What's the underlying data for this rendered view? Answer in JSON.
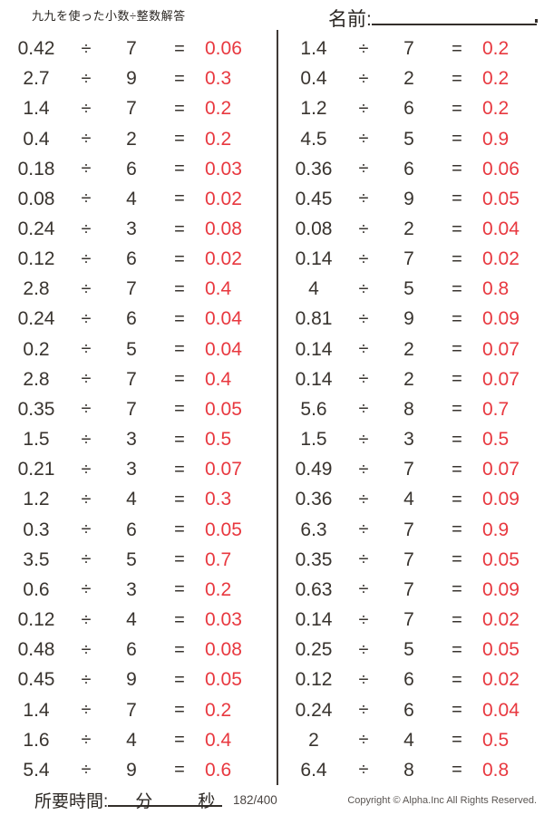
{
  "page": {
    "title": "九九を使った小数÷整数解答",
    "name_label": "名前:"
  },
  "symbols": {
    "divide": "÷",
    "equals": "="
  },
  "colors": {
    "answer_red": "#e8383f",
    "text_dark": "#39342f"
  },
  "problems": {
    "left": [
      {
        "dividend": "0.42",
        "divisor": "7",
        "answer": "0.06"
      },
      {
        "dividend": "2.7",
        "divisor": "9",
        "answer": "0.3"
      },
      {
        "dividend": "1.4",
        "divisor": "7",
        "answer": "0.2"
      },
      {
        "dividend": "0.4",
        "divisor": "2",
        "answer": "0.2"
      },
      {
        "dividend": "0.18",
        "divisor": "6",
        "answer": "0.03"
      },
      {
        "dividend": "0.08",
        "divisor": "4",
        "answer": "0.02"
      },
      {
        "dividend": "0.24",
        "divisor": "3",
        "answer": "0.08"
      },
      {
        "dividend": "0.12",
        "divisor": "6",
        "answer": "0.02"
      },
      {
        "dividend": "2.8",
        "divisor": "7",
        "answer": "0.4"
      },
      {
        "dividend": "0.24",
        "divisor": "6",
        "answer": "0.04"
      },
      {
        "dividend": "0.2",
        "divisor": "5",
        "answer": "0.04"
      },
      {
        "dividend": "2.8",
        "divisor": "7",
        "answer": "0.4"
      },
      {
        "dividend": "0.35",
        "divisor": "7",
        "answer": "0.05"
      },
      {
        "dividend": "1.5",
        "divisor": "3",
        "answer": "0.5"
      },
      {
        "dividend": "0.21",
        "divisor": "3",
        "answer": "0.07"
      },
      {
        "dividend": "1.2",
        "divisor": "4",
        "answer": "0.3"
      },
      {
        "dividend": "0.3",
        "divisor": "6",
        "answer": "0.05"
      },
      {
        "dividend": "3.5",
        "divisor": "5",
        "answer": "0.7"
      },
      {
        "dividend": "0.6",
        "divisor": "3",
        "answer": "0.2"
      },
      {
        "dividend": "0.12",
        "divisor": "4",
        "answer": "0.03"
      },
      {
        "dividend": "0.48",
        "divisor": "6",
        "answer": "0.08"
      },
      {
        "dividend": "0.45",
        "divisor": "9",
        "answer": "0.05"
      },
      {
        "dividend": "1.4",
        "divisor": "7",
        "answer": "0.2"
      },
      {
        "dividend": "1.6",
        "divisor": "4",
        "answer": "0.4"
      },
      {
        "dividend": "5.4",
        "divisor": "9",
        "answer": "0.6"
      }
    ],
    "right": [
      {
        "dividend": "1.4",
        "divisor": "7",
        "answer": "0.2"
      },
      {
        "dividend": "0.4",
        "divisor": "2",
        "answer": "0.2"
      },
      {
        "dividend": "1.2",
        "divisor": "6",
        "answer": "0.2"
      },
      {
        "dividend": "4.5",
        "divisor": "5",
        "answer": "0.9"
      },
      {
        "dividend": "0.36",
        "divisor": "6",
        "answer": "0.06"
      },
      {
        "dividend": "0.45",
        "divisor": "9",
        "answer": "0.05"
      },
      {
        "dividend": "0.08",
        "divisor": "2",
        "answer": "0.04"
      },
      {
        "dividend": "0.14",
        "divisor": "7",
        "answer": "0.02"
      },
      {
        "dividend": "4",
        "divisor": "5",
        "answer": "0.8"
      },
      {
        "dividend": "0.81",
        "divisor": "9",
        "answer": "0.09"
      },
      {
        "dividend": "0.14",
        "divisor": "2",
        "answer": "0.07"
      },
      {
        "dividend": "0.14",
        "divisor": "2",
        "answer": "0.07"
      },
      {
        "dividend": "5.6",
        "divisor": "8",
        "answer": "0.7"
      },
      {
        "dividend": "1.5",
        "divisor": "3",
        "answer": "0.5"
      },
      {
        "dividend": "0.49",
        "divisor": "7",
        "answer": "0.07"
      },
      {
        "dividend": "0.36",
        "divisor": "4",
        "answer": "0.09"
      },
      {
        "dividend": "6.3",
        "divisor": "7",
        "answer": "0.9"
      },
      {
        "dividend": "0.35",
        "divisor": "7",
        "answer": "0.05"
      },
      {
        "dividend": "0.63",
        "divisor": "7",
        "answer": "0.09"
      },
      {
        "dividend": "0.14",
        "divisor": "7",
        "answer": "0.02"
      },
      {
        "dividend": "0.25",
        "divisor": "5",
        "answer": "0.05"
      },
      {
        "dividend": "0.12",
        "divisor": "6",
        "answer": "0.02"
      },
      {
        "dividend": "0.24",
        "divisor": "6",
        "answer": "0.04"
      },
      {
        "dividend": "2",
        "divisor": "4",
        "answer": "0.5"
      },
      {
        "dividend": "6.4",
        "divisor": "8",
        "answer": "0.8"
      }
    ]
  },
  "footer": {
    "time_label": "所要時間:",
    "minutes_label": "分",
    "seconds_label": "秒",
    "progress": "182/400",
    "copyright": "Copyright © Alpha.Inc All Rights Reserved."
  }
}
